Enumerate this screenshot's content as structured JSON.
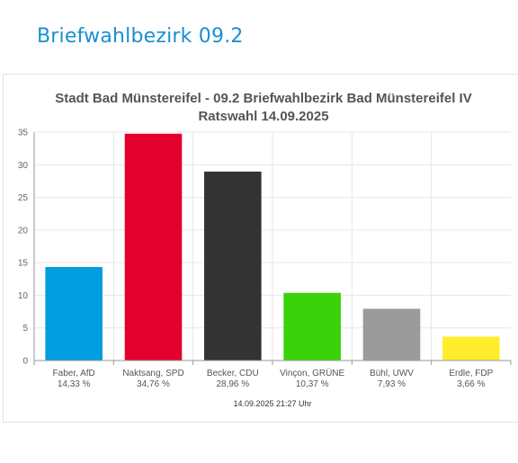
{
  "page": {
    "heading": "Briefwahlbezirk 09.2"
  },
  "chart_data": {
    "type": "bar",
    "title_line1": "Stadt Bad Münstereifel - 09.2 Briefwahlbezirk Bad Münstereifel IV",
    "title_line2": "Ratswahl 14.09.2025",
    "categories": [
      "Faber, AfD",
      "Naktsang, SPD",
      "Becker, CDU",
      "Vinçon, GRÜNE",
      "Bühl, UWV",
      "Erdle, FDP"
    ],
    "percent_labels": [
      "14,33 %",
      "34,76 %",
      "28,96 %",
      "10,37 %",
      "7,93 %",
      "3,66 %"
    ],
    "values": [
      14.33,
      34.76,
      28.96,
      10.37,
      7.93,
      3.66
    ],
    "colors": [
      "#009ee0",
      "#e3002d",
      "#333333",
      "#3ad20b",
      "#9b9b9b",
      "#ffed2b"
    ],
    "ylim": [
      0,
      35
    ],
    "yticks": [
      0,
      5,
      10,
      15,
      20,
      25,
      30,
      35
    ],
    "grid": true,
    "timestamp": "14.09.2025 21:27 Uhr"
  }
}
